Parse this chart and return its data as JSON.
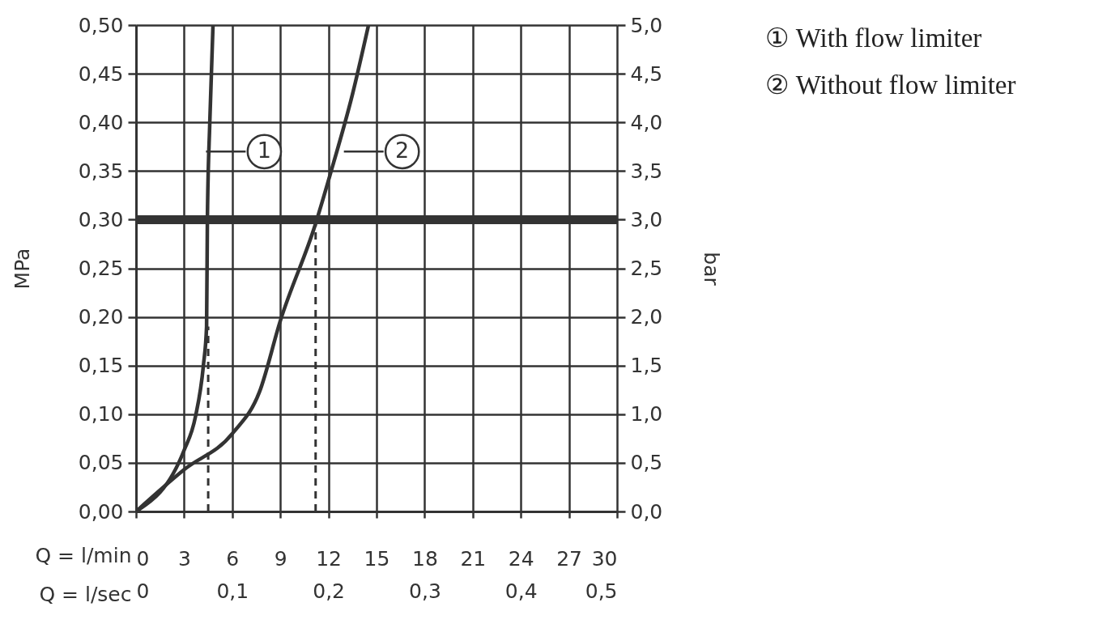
{
  "chart_data": {
    "type": "line",
    "xlabel": "Q = l/min",
    "x2label": "Q = l/sec",
    "ylabel": "MPa",
    "y2label": "bar",
    "series": [
      {
        "name": "① With flow limiter",
        "color": "#333333",
        "x": [
          0,
          3,
          3.7,
          4.2,
          4.4,
          4.45,
          4.6,
          4.8
        ],
        "values": [
          0,
          0.063,
          0.097,
          0.15,
          0.19,
          0.3,
          0.4,
          0.5
        ]
      },
      {
        "name": "② Without flow limiter",
        "color": "#333333",
        "x": [
          0,
          3,
          6,
          7.7,
          9,
          11.2,
          12.1,
          13.5,
          14.5
        ],
        "values": [
          0,
          0.043,
          0.08,
          0.123,
          0.196,
          0.296,
          0.346,
          0.429,
          0.5
        ]
      },
      {
        "color": "#333333",
        "line_style": "dashed",
        "x": [
          4.5,
          4.5
        ],
        "values": [
          0,
          0.19
        ]
      },
      {
        "color": "#333333",
        "line_style": "dashed",
        "x": [
          11.2,
          11.2
        ],
        "values": [
          0,
          0.296
        ]
      }
    ],
    "xlim": [
      0,
      30
    ],
    "xticks": [
      0,
      3,
      6,
      9,
      12,
      15,
      18,
      21,
      24,
      27,
      30
    ],
    "x2lim": [
      0,
      0.5
    ],
    "x2ticks": [
      0,
      {
        "value": 0.1,
        "label": "0,1"
      },
      {
        "value": 0.2,
        "label": "0,2"
      },
      {
        "value": 0.3,
        "label": "0,3"
      },
      {
        "value": 0.4,
        "label": "0,4"
      },
      {
        "value": 0.5,
        "label": "0,5"
      }
    ],
    "ylim": [
      0,
      0.5
    ],
    "yticks": [
      {
        "value": 0,
        "label": "0,00"
      },
      {
        "value": 0.05,
        "label": "0,05"
      },
      {
        "value": 0.1,
        "label": "0,10"
      },
      {
        "value": 0.15,
        "label": "0,15"
      },
      {
        "value": 0.2,
        "label": "0,20"
      },
      {
        "value": 0.25,
        "label": "0,25"
      },
      {
        "value": 0.3,
        "label": "0,30"
      },
      {
        "value": 0.35,
        "label": "0,35"
      },
      {
        "value": 0.4,
        "label": "0,40"
      },
      {
        "value": 0.45,
        "label": "0,45"
      },
      {
        "value": 0.5,
        "label": "0,50"
      }
    ],
    "y2lim": [
      0,
      5
    ],
    "y2ticks": [
      {
        "value": 0,
        "label": "0,0"
      },
      {
        "value": 0.5,
        "label": "0,5"
      },
      {
        "value": 1,
        "label": "1,0"
      },
      {
        "value": 1.5,
        "label": "1,5"
      },
      {
        "value": 2,
        "label": "2,0"
      },
      {
        "value": 2.5,
        "label": "2,5"
      },
      {
        "value": 3,
        "label": "3,0"
      },
      {
        "value": 3.5,
        "label": "3,5"
      },
      {
        "value": 4,
        "label": "4,0"
      },
      {
        "value": 4.5,
        "label": "4,5"
      },
      {
        "value": 5,
        "label": "5,0"
      }
    ],
    "ref_lines": [
      {
        "axis": "y",
        "value": 0.3,
        "color": "#333333"
      }
    ],
    "annotations": [
      {
        "text": "1",
        "x": 8,
        "y": 0.37
      },
      {
        "text": "2",
        "x": 16.6,
        "y": 0.37
      }
    ],
    "grid": true,
    "legend": "top right"
  }
}
